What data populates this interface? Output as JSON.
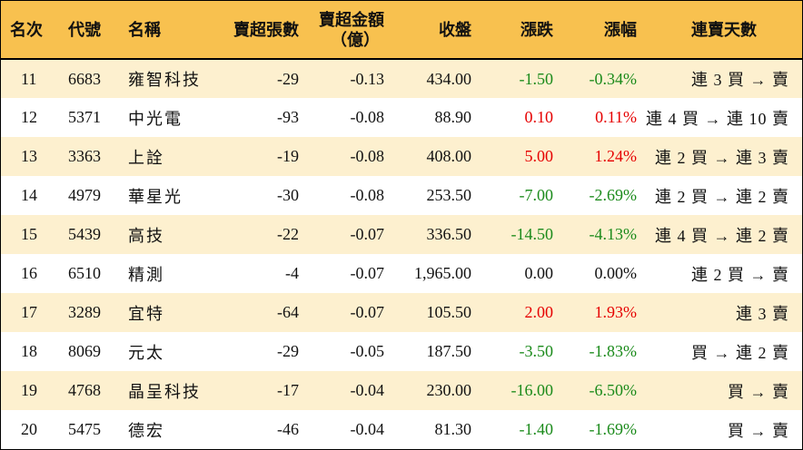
{
  "headers": {
    "rank": "名次",
    "code": "代號",
    "name": "名稱",
    "sell_lots": "賣超張數",
    "sell_amount_line1": "賣超金額",
    "sell_amount_line2": "（億）",
    "close": "收盤",
    "change": "漲跌",
    "change_pct": "漲幅",
    "streak": "連賣天數"
  },
  "colors": {
    "header_bg": "#f8c14f",
    "odd_row_bg": "#fdf0cf",
    "up": "#e60000",
    "down": "#1a8a1a"
  },
  "rows": [
    {
      "rank": "11",
      "code": "6683",
      "name": "雍智科技",
      "sell_lots": "-29",
      "sell_amount": "-0.13",
      "close": "434.00",
      "change": "-1.50",
      "change_pct": "-0.34%",
      "dir": "down",
      "streak": "連 3 買 → 賣"
    },
    {
      "rank": "12",
      "code": "5371",
      "name": "中光電",
      "sell_lots": "-93",
      "sell_amount": "-0.08",
      "close": "88.90",
      "change": "0.10",
      "change_pct": "0.11%",
      "dir": "up",
      "streak": "連 4 買 → 連 10 賣"
    },
    {
      "rank": "13",
      "code": "3363",
      "name": "上詮",
      "sell_lots": "-19",
      "sell_amount": "-0.08",
      "close": "408.00",
      "change": "5.00",
      "change_pct": "1.24%",
      "dir": "up",
      "streak": "連 2 買 → 連 3 賣"
    },
    {
      "rank": "14",
      "code": "4979",
      "name": "華星光",
      "sell_lots": "-30",
      "sell_amount": "-0.08",
      "close": "253.50",
      "change": "-7.00",
      "change_pct": "-2.69%",
      "dir": "down",
      "streak": "連 2 買 → 連 2 賣"
    },
    {
      "rank": "15",
      "code": "5439",
      "name": "高技",
      "sell_lots": "-22",
      "sell_amount": "-0.07",
      "close": "336.50",
      "change": "-14.50",
      "change_pct": "-4.13%",
      "dir": "down",
      "streak": "連 4 買 → 連 2 賣"
    },
    {
      "rank": "16",
      "code": "6510",
      "name": "精測",
      "sell_lots": "-4",
      "sell_amount": "-0.07",
      "close": "1,965.00",
      "change": "0.00",
      "change_pct": "0.00%",
      "dir": "flat",
      "streak": "連 2 買 → 賣"
    },
    {
      "rank": "17",
      "code": "3289",
      "name": "宜特",
      "sell_lots": "-64",
      "sell_amount": "-0.07",
      "close": "105.50",
      "change": "2.00",
      "change_pct": "1.93%",
      "dir": "up",
      "streak": "連 3 賣"
    },
    {
      "rank": "18",
      "code": "8069",
      "name": "元太",
      "sell_lots": "-29",
      "sell_amount": "-0.05",
      "close": "187.50",
      "change": "-3.50",
      "change_pct": "-1.83%",
      "dir": "down",
      "streak": "買 → 連 2 賣"
    },
    {
      "rank": "19",
      "code": "4768",
      "name": "晶呈科技",
      "sell_lots": "-17",
      "sell_amount": "-0.04",
      "close": "230.00",
      "change": "-16.00",
      "change_pct": "-6.50%",
      "dir": "down",
      "streak": "買 → 賣"
    },
    {
      "rank": "20",
      "code": "5475",
      "name": "德宏",
      "sell_lots": "-46",
      "sell_amount": "-0.04",
      "close": "81.30",
      "change": "-1.40",
      "change_pct": "-1.69%",
      "dir": "down",
      "streak": "買 → 賣"
    }
  ]
}
